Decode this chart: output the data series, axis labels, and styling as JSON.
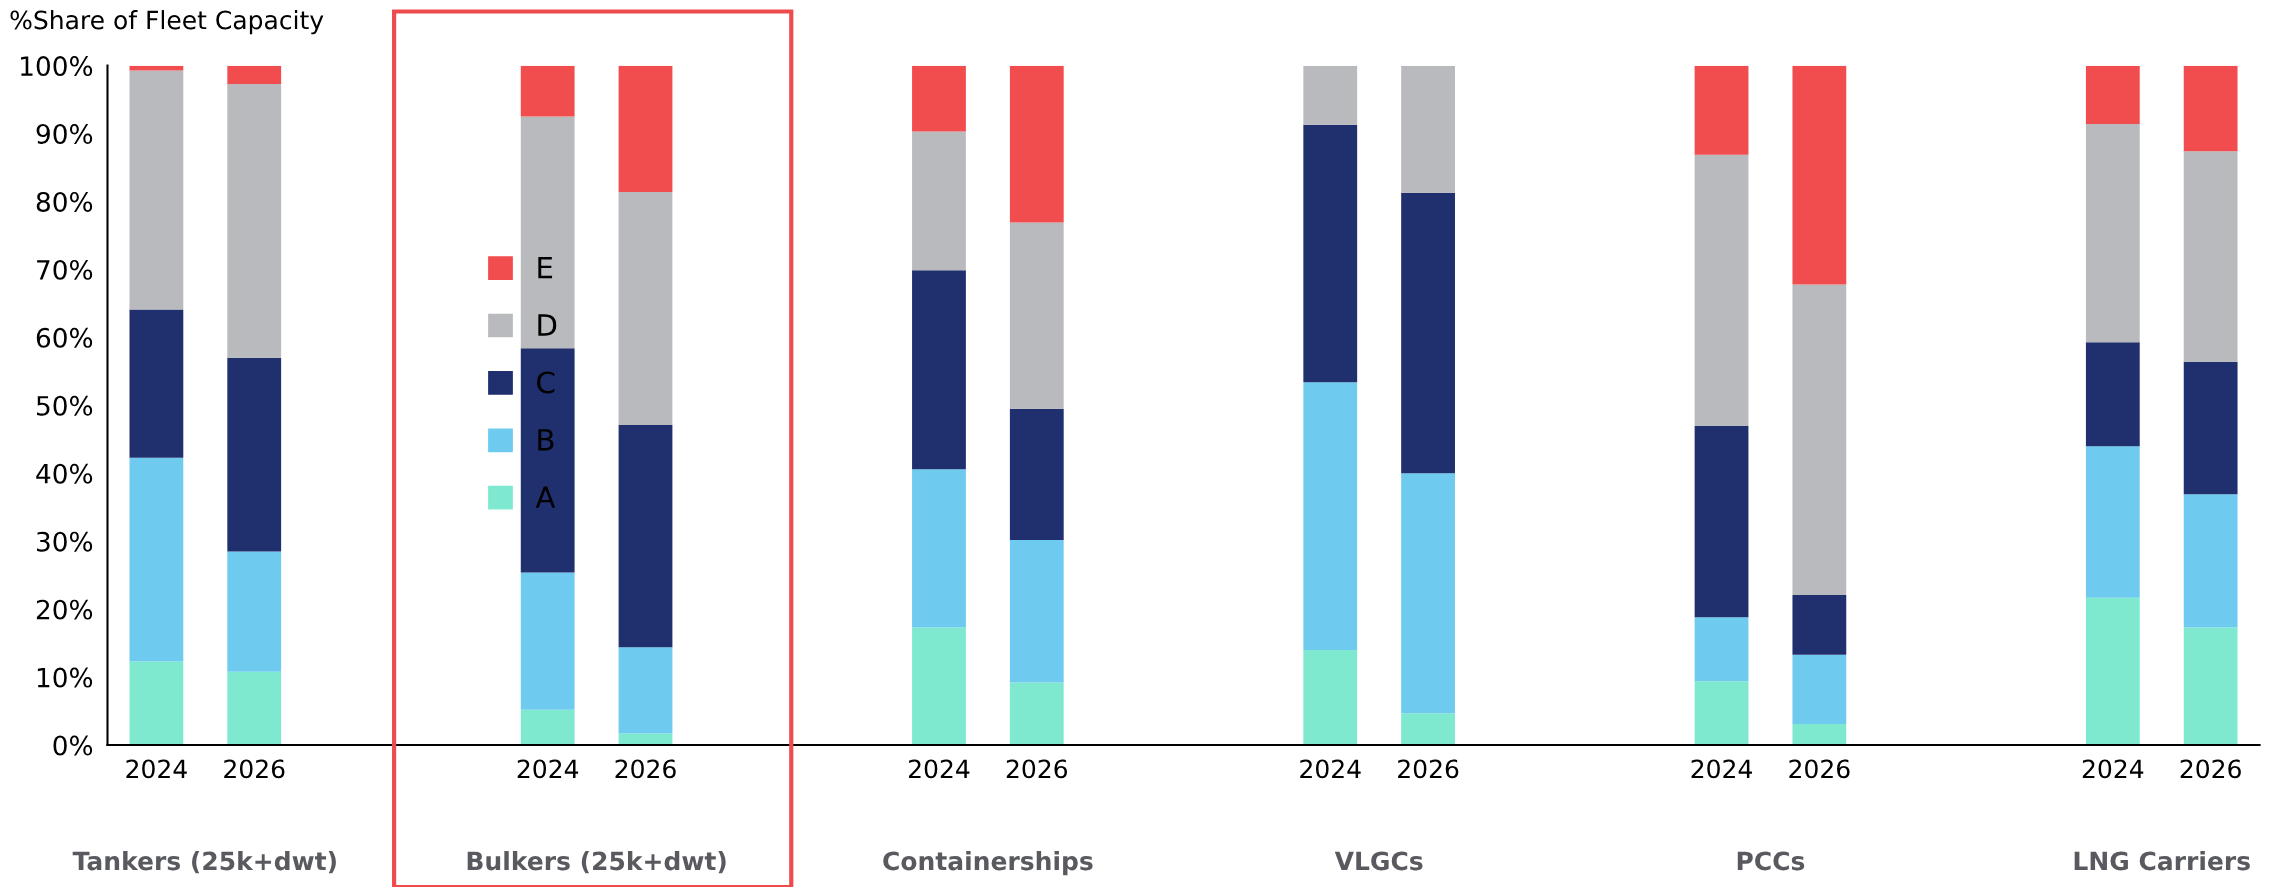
{
  "chart_data": {
    "type": "bar",
    "stacked": true,
    "ylabel": "%Share of Fleet Capacity",
    "categories": [
      "2024",
      "2026",
      null,
      null,
      "2024",
      "2026",
      null,
      null,
      "2024",
      "2026",
      null,
      null,
      "2024",
      "2026",
      null,
      null,
      "2024",
      "2026",
      null,
      null,
      "2024",
      "2026"
    ],
    "series": [
      {
        "name": "A",
        "color": "#7fe9d0",
        "values": [
          12.3,
          10.8,
          null,
          null,
          5.2,
          1.7,
          null,
          null,
          17.3,
          9.2,
          null,
          null,
          14.0,
          4.7,
          null,
          null,
          9.4,
          3.1,
          null,
          null,
          21.7,
          17.3
        ]
      },
      {
        "name": "B",
        "color": "#6ecbef",
        "values": [
          30.0,
          17.7,
          null,
          null,
          20.2,
          12.7,
          null,
          null,
          23.3,
          21.0,
          null,
          null,
          39.4,
          35.3,
          null,
          null,
          9.4,
          10.2,
          null,
          null,
          22.3,
          19.6
        ]
      },
      {
        "name": "C",
        "color": "#202f6e",
        "values": [
          21.8,
          28.5,
          null,
          null,
          33.0,
          32.7,
          null,
          null,
          29.3,
          19.3,
          null,
          null,
          37.9,
          41.3,
          null,
          null,
          28.2,
          8.8,
          null,
          null,
          15.3,
          19.5
        ]
      },
      {
        "name": "D",
        "color": "#b9babd",
        "values": [
          35.2,
          40.3,
          null,
          null,
          34.1,
          34.3,
          null,
          null,
          20.4,
          27.4,
          null,
          null,
          8.7,
          18.7,
          null,
          null,
          39.9,
          45.7,
          null,
          null,
          32.1,
          31.0
        ]
      },
      {
        "name": "E",
        "color": "#f24d4e",
        "values": [
          0.7,
          2.7,
          null,
          null,
          7.5,
          18.6,
          null,
          null,
          9.7,
          23.1,
          null,
          null,
          null,
          null,
          null,
          null,
          13.1,
          32.2,
          null,
          null,
          8.6,
          12.6
        ]
      }
    ],
    "annotations": [
      "Tankers (25k+dwt)",
      "Bulkers (25k+dwt)",
      "Containerships",
      "VLGCs",
      "PCCs",
      "LNG Carriers"
    ],
    "ylim": [
      0,
      100
    ],
    "yticks": [
      {
        "value": 0,
        "label": "0%"
      },
      {
        "value": 10,
        "label": "10%"
      },
      {
        "value": 20,
        "label": "20%"
      },
      {
        "value": 30,
        "label": "30%"
      },
      {
        "value": 40,
        "label": "40%"
      },
      {
        "value": 50,
        "label": "50%"
      },
      {
        "value": 60,
        "label": "60%"
      },
      {
        "value": 70,
        "label": "70%"
      },
      {
        "value": 80,
        "label": "80%"
      },
      {
        "value": 90,
        "label": "90%"
      },
      {
        "value": 100,
        "label": "100%"
      }
    ],
    "grid": false,
    "legend": "left"
  }
}
